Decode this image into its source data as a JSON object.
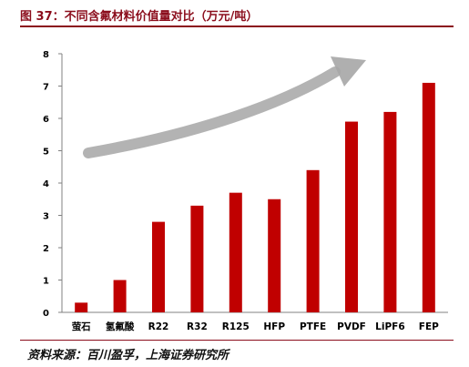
{
  "figure": {
    "title": "图 37：不同含氟材料价值量对比（万元/吨）",
    "source": "资料来源：百川盈孚，上海证券研究所"
  },
  "colors": {
    "bar": "#c00000",
    "title": "#8b0d1c",
    "arrow": "#a6a6a6"
  },
  "chart_data": {
    "type": "bar",
    "title": "",
    "xlabel": "",
    "ylabel": "",
    "categories": [
      "萤石",
      "氢氟酸",
      "R22",
      "R32",
      "R125",
      "HFP",
      "PTFE",
      "PVDF",
      "LiPF6",
      "FEP"
    ],
    "values": [
      0.3,
      1.0,
      2.8,
      3.3,
      3.7,
      3.5,
      4.4,
      5.9,
      6.2,
      7.1
    ],
    "ylim": [
      0,
      8
    ],
    "yticks": [
      "0",
      "1",
      "2",
      "3",
      "4",
      "5",
      "6",
      "7",
      "8"
    ],
    "grid": false,
    "legend": "none",
    "annotation": "grey upward trend arrow"
  }
}
